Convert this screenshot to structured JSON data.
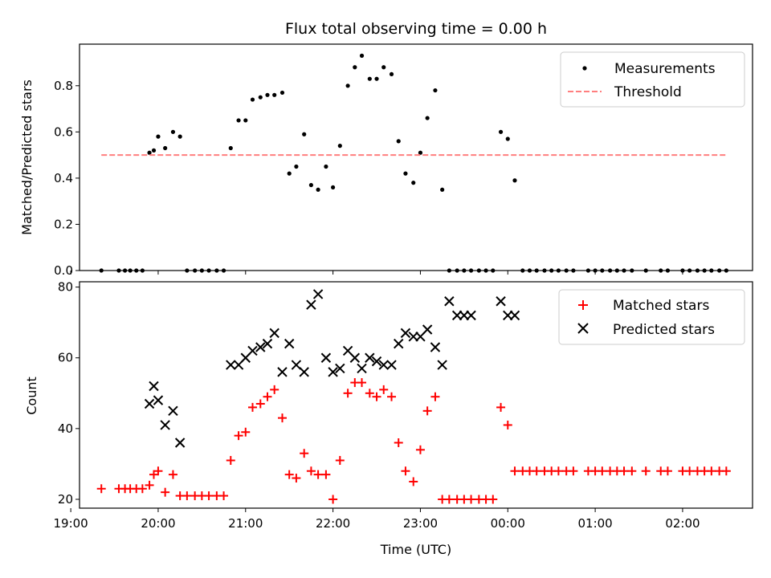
{
  "chart_data": [
    {
      "type": "scatter",
      "title": "Flux total observing time = 0.00 h",
      "xlabel": "",
      "ylabel": "Matched/Predicted stars",
      "ylim": [
        0,
        0.98
      ],
      "yticks": [
        "0.0",
        "0.2",
        "0.4",
        "0.6",
        "0.8"
      ],
      "ytick_values": [
        0,
        0.2,
        0.4,
        0.6,
        0.8
      ],
      "xlim": [
        19.1,
        26.8
      ],
      "xtick_values": [
        19,
        20,
        21,
        22,
        23,
        24,
        25,
        26
      ],
      "legend_position": "top-right",
      "series": [
        {
          "name": "Measurements",
          "color": "#000000",
          "marker": "dot",
          "x": [
            19.35,
            19.55,
            19.62,
            19.68,
            19.75,
            19.82,
            19.9,
            19.95,
            20.0,
            20.08,
            20.17,
            20.25,
            20.33,
            20.42,
            20.5,
            20.58,
            20.67,
            20.75,
            20.83,
            20.92,
            21.0,
            21.08,
            21.17,
            21.25,
            21.33,
            21.42,
            21.5,
            21.58,
            21.67,
            21.75,
            21.83,
            21.92,
            22.0,
            22.08,
            22.17,
            22.25,
            22.33,
            22.42,
            22.5,
            22.58,
            22.67,
            22.75,
            22.83,
            22.92,
            23.0,
            23.08,
            23.17,
            23.25,
            23.33,
            23.42,
            23.5,
            23.58,
            23.67,
            23.75,
            23.83,
            23.92,
            24.0,
            24.08,
            24.17,
            24.25,
            24.33,
            24.42,
            24.5,
            24.58,
            24.67,
            24.75,
            24.92,
            25.0,
            25.08,
            25.17,
            25.25,
            25.33,
            25.42,
            25.58,
            25.75,
            25.83,
            26.0,
            26.08,
            26.17,
            26.25,
            26.33,
            26.42,
            26.5
          ],
          "y": [
            0.0,
            0.0,
            0.0,
            0.0,
            0.0,
            0.0,
            0.51,
            0.52,
            0.58,
            0.53,
            0.6,
            0.58,
            0.0,
            0.0,
            0.0,
            0.0,
            0.0,
            0.0,
            0.53,
            0.65,
            0.65,
            0.74,
            0.75,
            0.76,
            0.76,
            0.77,
            0.42,
            0.45,
            0.59,
            0.37,
            0.35,
            0.45,
            0.36,
            0.54,
            0.8,
            0.88,
            0.93,
            0.83,
            0.83,
            0.88,
            0.85,
            0.56,
            0.42,
            0.38,
            0.51,
            0.66,
            0.78,
            0.35,
            0.0,
            0.0,
            0.0,
            0.0,
            0.0,
            0.0,
            0.0,
            0.6,
            0.57,
            0.39,
            0.0,
            0.0,
            0.0,
            0.0,
            0.0,
            0.0,
            0.0,
            0.0,
            0.0,
            0.0,
            0.0,
            0.0,
            0.0,
            0.0,
            0.0,
            0.0,
            0.0,
            0.0,
            0.0,
            0.0,
            0.0,
            0.0,
            0.0,
            0.0,
            0.0
          ]
        },
        {
          "name": "Threshold",
          "color": "#ff7f7f",
          "marker": "dashed-line",
          "x": [
            19.35,
            26.5
          ],
          "y": [
            0.5,
            0.5
          ]
        }
      ]
    },
    {
      "type": "scatter",
      "title": "",
      "xlabel": "Time (UTC)",
      "ylabel": "Count",
      "ylim": [
        17.5,
        81.5
      ],
      "yticks": [
        "20",
        "40",
        "60",
        "80"
      ],
      "ytick_values": [
        20,
        40,
        60,
        80
      ],
      "xlim": [
        19.1,
        26.8
      ],
      "xtick_values": [
        19,
        20,
        21,
        22,
        23,
        24,
        25,
        26
      ],
      "xticks": [
        "19:00",
        "20:00",
        "21:00",
        "22:00",
        "23:00",
        "00:00",
        "01:00",
        "02:00"
      ],
      "legend_position": "top-right",
      "series": [
        {
          "name": "Matched stars",
          "color": "#ff0000",
          "marker": "plus",
          "x": [
            19.35,
            19.55,
            19.62,
            19.68,
            19.75,
            19.82,
            19.9,
            19.95,
            20.0,
            20.08,
            20.17,
            20.25,
            20.33,
            20.42,
            20.5,
            20.58,
            20.67,
            20.75,
            20.83,
            20.92,
            21.0,
            21.08,
            21.17,
            21.25,
            21.33,
            21.42,
            21.5,
            21.58,
            21.67,
            21.75,
            21.83,
            21.92,
            22.0,
            22.08,
            22.17,
            22.25,
            22.33,
            22.42,
            22.5,
            22.58,
            22.67,
            22.75,
            22.83,
            22.92,
            23.0,
            23.08,
            23.17,
            23.25,
            23.33,
            23.42,
            23.5,
            23.58,
            23.67,
            23.75,
            23.83,
            23.92,
            24.0,
            24.08,
            24.17,
            24.25,
            24.33,
            24.42,
            24.5,
            24.58,
            24.67,
            24.75,
            24.92,
            25.0,
            25.08,
            25.17,
            25.25,
            25.33,
            25.42,
            25.58,
            25.75,
            25.83,
            26.0,
            26.08,
            26.17,
            26.25,
            26.33,
            26.42,
            26.5
          ],
          "y": [
            23,
            23,
            23,
            23,
            23,
            23,
            24,
            27,
            28,
            22,
            27,
            21,
            21,
            21,
            21,
            21,
            21,
            21,
            31,
            38,
            39,
            46,
            47,
            49,
            51,
            43,
            27,
            26,
            33,
            28,
            27,
            27,
            20,
            31,
            50,
            53,
            53,
            50,
            49,
            51,
            49,
            36,
            28,
            25,
            34,
            45,
            49,
            20,
            20,
            20,
            20,
            20,
            20,
            20,
            20,
            46,
            41,
            28,
            28,
            28,
            28,
            28,
            28,
            28,
            28,
            28,
            28,
            28,
            28,
            28,
            28,
            28,
            28,
            28,
            28,
            28,
            28,
            28,
            28,
            28,
            28,
            28,
            28
          ]
        },
        {
          "name": "Predicted stars",
          "color": "#000000",
          "marker": "x",
          "x": [
            19.9,
            19.95,
            20.0,
            20.08,
            20.17,
            20.25,
            20.83,
            20.92,
            21.0,
            21.08,
            21.17,
            21.25,
            21.33,
            21.42,
            21.5,
            21.58,
            21.67,
            21.75,
            21.83,
            21.92,
            22.0,
            22.08,
            22.17,
            22.25,
            22.33,
            22.42,
            22.5,
            22.58,
            22.67,
            22.75,
            22.83,
            22.92,
            23.0,
            23.08,
            23.17,
            23.25,
            23.33,
            23.42,
            23.5,
            23.58,
            23.92,
            24.0,
            24.08
          ],
          "y": [
            47,
            52,
            48,
            41,
            45,
            36,
            58,
            58,
            60,
            62,
            63,
            64,
            67,
            56,
            64,
            58,
            56,
            75,
            78,
            60,
            56,
            57,
            62,
            60,
            57,
            60,
            59,
            58,
            58,
            64,
            67,
            66,
            66,
            68,
            63,
            58,
            76,
            72,
            72,
            72,
            76,
            72,
            72
          ]
        }
      ]
    }
  ]
}
